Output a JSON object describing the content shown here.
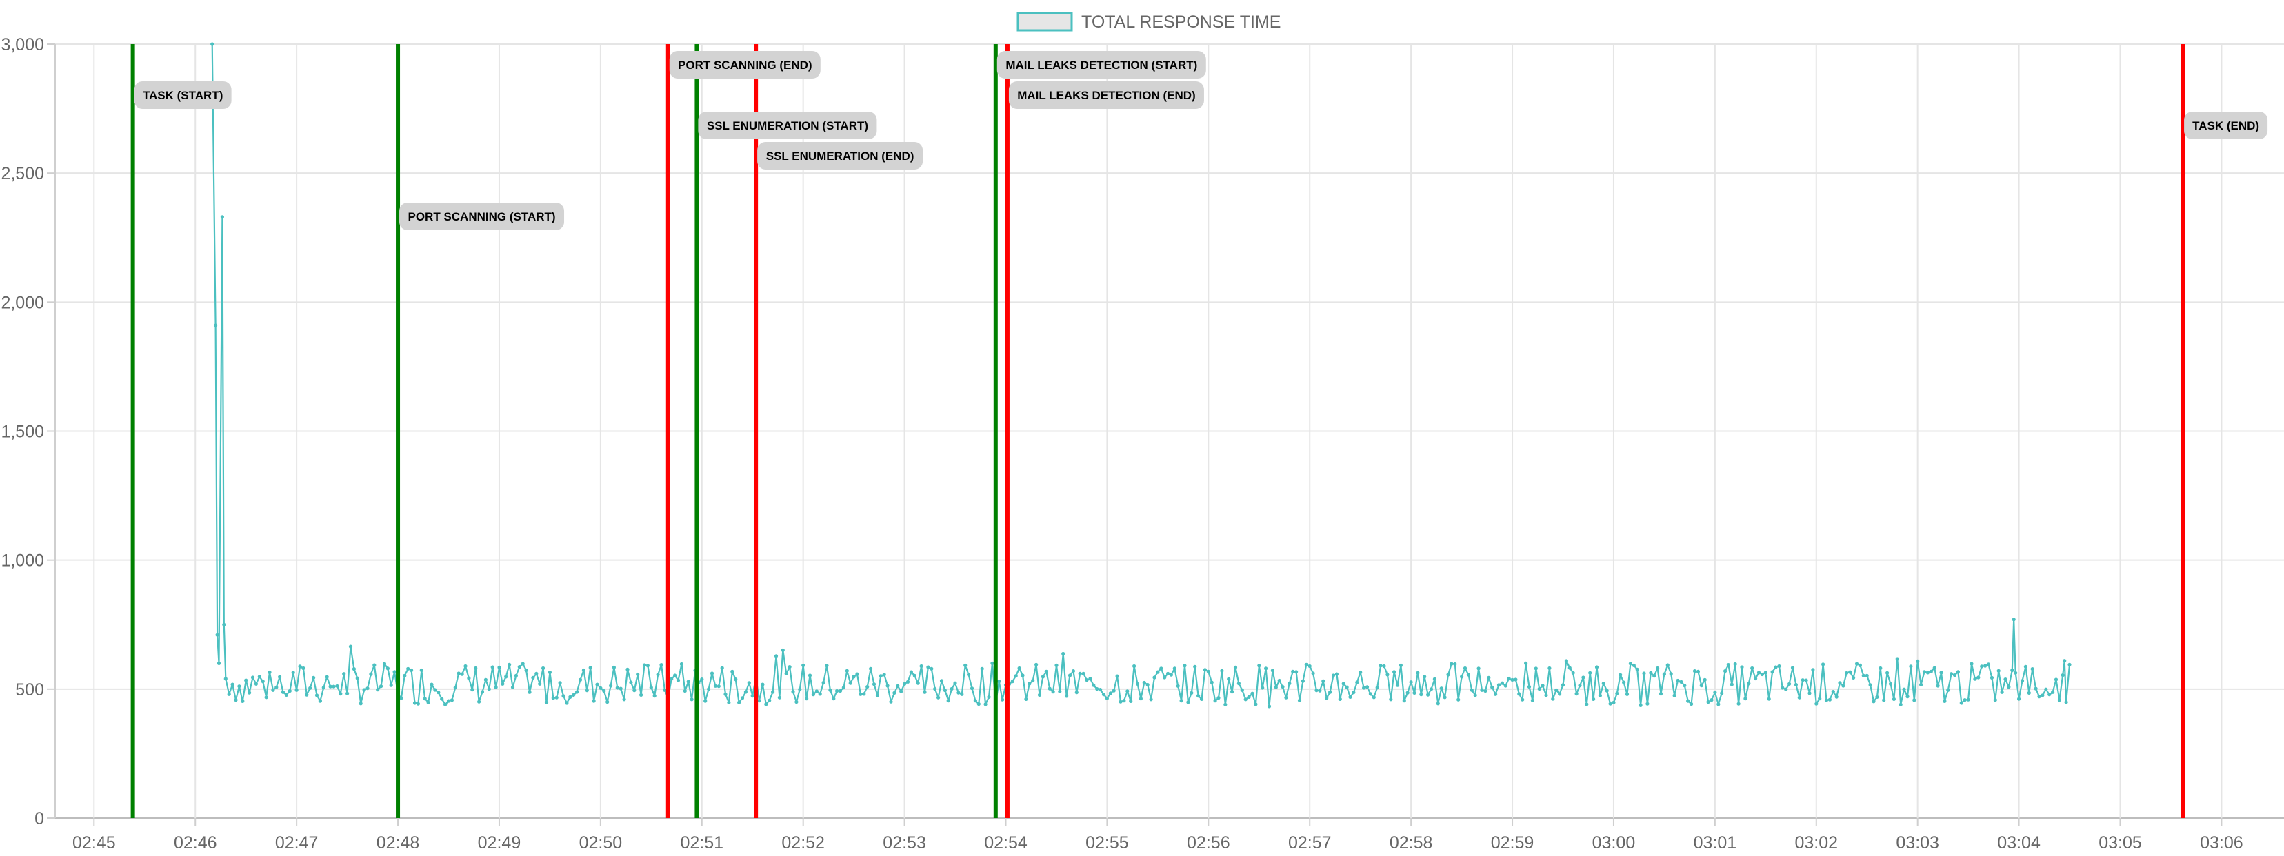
{
  "chart_data": {
    "type": "line",
    "legend": {
      "label": "TOTAL RESPONSE TIME",
      "position": "top-center"
    },
    "grid": true,
    "colors": {
      "series": "#4bc0c0",
      "start_marker": "#008000",
      "end_marker": "#ff0000",
      "grid": "#e5e5e5",
      "annotation_bg": "#d3d3d3"
    },
    "ylim": [
      0,
      3000
    ],
    "yticks": [
      0,
      500,
      1000,
      1500,
      2000,
      2500,
      3000
    ],
    "ytick_labels": [
      "0",
      "500",
      "1,000",
      "1,500",
      "2,000",
      "2,500",
      "3,000"
    ],
    "xlim": [
      "02:44:37",
      "03:06:37"
    ],
    "xticks": [
      "02:45",
      "02:46",
      "02:47",
      "02:48",
      "02:49",
      "02:50",
      "02:51",
      "02:52",
      "02:53",
      "02:54",
      "02:55",
      "02:56",
      "02:57",
      "02:58",
      "02:59",
      "03:00",
      "03:01",
      "03:02",
      "03:03",
      "03:04",
      "03:05",
      "03:06"
    ],
    "series": [
      {
        "name": "TOTAL RESPONSE TIME",
        "sample_interval_seconds": 2,
        "points": [
          [
            "02:46:10",
            3000
          ],
          [
            "02:46:12",
            1910
          ],
          [
            "02:46:13",
            710
          ],
          [
            "02:46:14",
            600
          ],
          [
            "02:46:16",
            2330
          ],
          [
            "02:46:17",
            750
          ],
          [
            "02:46:18",
            540
          ],
          [
            "02:46:20",
            480
          ]
        ],
        "steady_state": {
          "from": "02:46:22",
          "to": "03:04:30",
          "baseline": 520,
          "min": 420,
          "max": 700
        },
        "spikes": [
          [
            "03:03:57",
            770
          ],
          [
            "03:04:27",
            610
          ]
        ]
      }
    ],
    "annotations": [
      {
        "time": "02:45:23",
        "type": "start",
        "label": "TASK (START)",
        "level": 2
      },
      {
        "time": "02:48:00",
        "type": "start",
        "label": "PORT SCANNING (START)",
        "level": 6
      },
      {
        "time": "02:50:40",
        "type": "end",
        "label": "PORT SCANNING (END)",
        "level": 1
      },
      {
        "time": "02:50:57",
        "type": "start",
        "label": "SSL ENUMERATION (START)",
        "level": 3
      },
      {
        "time": "02:51:32",
        "type": "end",
        "label": "SSL ENUMERATION (END)",
        "level": 4
      },
      {
        "time": "02:53:54",
        "type": "start",
        "label": "MAIL LEAKS DETECTION (START)",
        "level": 1
      },
      {
        "time": "02:54:01",
        "type": "end",
        "label": "MAIL LEAKS DETECTION (END)",
        "level": 2
      },
      {
        "time": "03:05:37",
        "type": "end",
        "label": "TASK (END)",
        "level": 3
      }
    ]
  }
}
